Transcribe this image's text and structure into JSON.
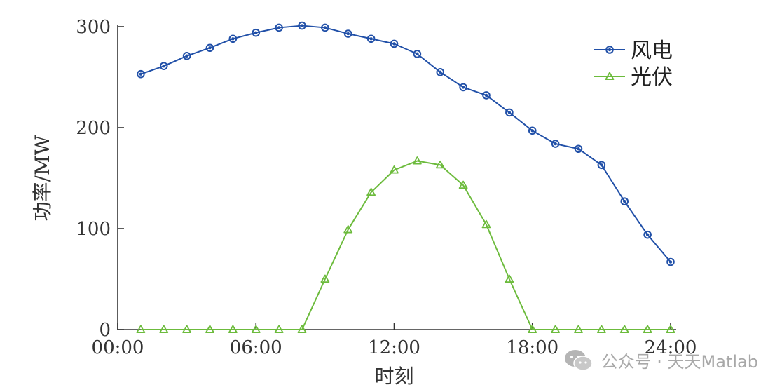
{
  "chart_data": {
    "type": "line",
    "title": "",
    "xlabel": "时刻",
    "ylabel": "功率/MW",
    "xlim": [
      0,
      24
    ],
    "ylim": [
      0,
      300
    ],
    "x_ticks": [
      "00:00",
      "06:00",
      "12:00",
      "18:00",
      "24:00"
    ],
    "y_ticks": [
      "0",
      "100",
      "200",
      "300"
    ],
    "x": [
      1,
      2,
      3,
      4,
      5,
      6,
      7,
      8,
      9,
      10,
      11,
      12,
      13,
      14,
      15,
      16,
      17,
      18,
      19,
      20,
      21,
      22,
      23,
      24
    ],
    "series": [
      {
        "name": "风电",
        "color": "#2150a8",
        "marker": "circle",
        "values": [
          253,
          261,
          271,
          279,
          288,
          294,
          299,
          301,
          299,
          293,
          288,
          283,
          273,
          255,
          240,
          232,
          215,
          197,
          184,
          179,
          163,
          127,
          94,
          67
        ]
      },
      {
        "name": "光伏",
        "color": "#6cbb3c",
        "marker": "triangle",
        "values": [
          0,
          0,
          0,
          0,
          0,
          0,
          0,
          0,
          50,
          99,
          136,
          158,
          167,
          163,
          143,
          104,
          50,
          0,
          0,
          0,
          0,
          0,
          0,
          0
        ]
      }
    ],
    "legend_position": "top-right",
    "grid": false
  },
  "watermark": {
    "text": "公众号 · 天天Matlab",
    "icon": "wechat-icon"
  }
}
